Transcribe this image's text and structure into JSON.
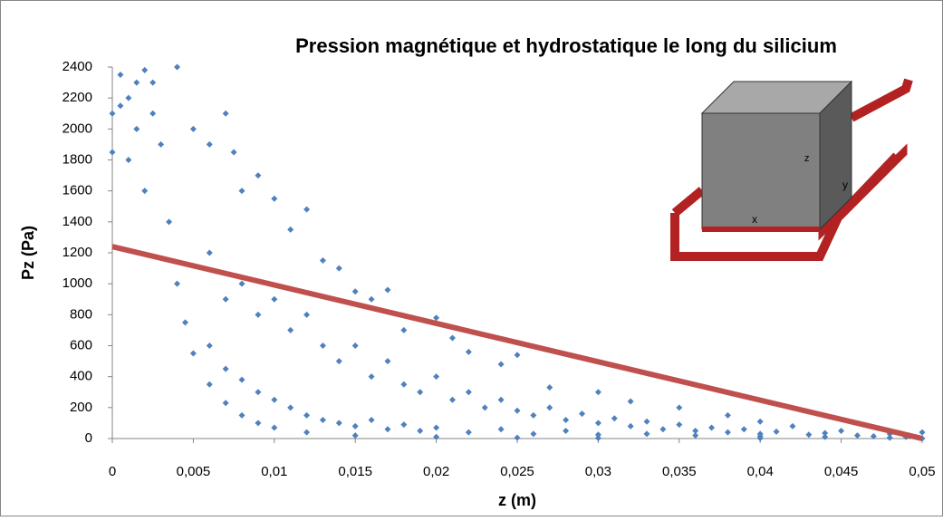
{
  "chart_data": {
    "type": "scatter",
    "title": "Pression magnétique et hydrostatique le long du silicium",
    "x_label": "z (m)",
    "y_label": "Pz (Pa)",
    "xlim": [
      0,
      0.05
    ],
    "ylim": [
      0,
      2400
    ],
    "xticks": [
      0,
      {
        "value": 0.005,
        "label": "0,005"
      },
      {
        "value": 0.01,
        "label": "0,01"
      },
      {
        "value": 0.015,
        "label": "0,015"
      },
      {
        "value": 0.02,
        "label": "0,02"
      },
      {
        "value": 0.025,
        "label": "0,025"
      },
      {
        "value": 0.03,
        "label": "0,03"
      },
      {
        "value": 0.035,
        "label": "0,035"
      },
      {
        "value": 0.04,
        "label": "0,04"
      },
      {
        "value": 0.045,
        "label": "0,045"
      },
      {
        "value": 0.05,
        "label": "0,05"
      }
    ],
    "yticks": [
      0,
      200,
      400,
      600,
      800,
      1000,
      1200,
      1400,
      1600,
      1800,
      2000,
      2200,
      2400
    ],
    "grid": false,
    "series": [
      {
        "color": "#4f81bd",
        "marker": "diamond",
        "x": [
          0.0025,
          0.003,
          0.0035,
          0.004,
          0.0045,
          0.005,
          0.006,
          0.007,
          0.008,
          0.009,
          0.01,
          0.012,
          0.015,
          0.02,
          0.025,
          0.03,
          0.04,
          0.05,
          0,
          0,
          0.0005,
          0.001,
          0.0015,
          0.001,
          0.002,
          0.002,
          0.0025,
          0.0015,
          0.0005,
          0.004,
          0.005,
          0.006,
          0.007,
          0.0075,
          0.008,
          0.009,
          0.01,
          0.011,
          0.012,
          0.013,
          0.014,
          0.015,
          0.016,
          0.017,
          0.018,
          0.02,
          0.021,
          0.022,
          0.024,
          0.025,
          0.027,
          0.03,
          0.032,
          0.035,
          0.038,
          0.04,
          0.042,
          0.045,
          0.048,
          0.05,
          0.006,
          0.007,
          0.008,
          0.009,
          0.01,
          0.011,
          0.012,
          0.013,
          0.014,
          0.015,
          0.016,
          0.017,
          0.018,
          0.019,
          0.02,
          0.021,
          0.022,
          0.023,
          0.024,
          0.025,
          0.026,
          0.027,
          0.028,
          0.029,
          0.03,
          0.031,
          0.032,
          0.033,
          0.034,
          0.035,
          0.036,
          0.037,
          0.038,
          0.039,
          0.04,
          0.041,
          0.043,
          0.044,
          0.046,
          0.047,
          0.049,
          0.006,
          0.007,
          0.008,
          0.009,
          0.01,
          0.011,
          0.012,
          0.013,
          0.014,
          0.015,
          0.016,
          0.017,
          0.018,
          0.019,
          0.02,
          0.022,
          0.024,
          0.026,
          0.028,
          0.03,
          0.033,
          0.036,
          0.04,
          0.044,
          0.048
        ],
        "values": [
          2300,
          1900,
          1400,
          1000,
          750,
          550,
          350,
          230,
          150,
          100,
          70,
          40,
          20,
          10,
          5,
          3,
          2,
          1,
          1850,
          2100,
          2350,
          2200,
          2000,
          1800,
          1600,
          2380,
          2100,
          2300,
          2150,
          2400,
          2000,
          1900,
          2100,
          1850,
          1600,
          1700,
          1550,
          1350,
          1480,
          1150,
          1100,
          950,
          900,
          960,
          700,
          780,
          650,
          560,
          480,
          540,
          330,
          300,
          240,
          200,
          150,
          110,
          80,
          50,
          30,
          40,
          1200,
          900,
          1000,
          800,
          900,
          700,
          800,
          600,
          500,
          600,
          400,
          500,
          350,
          300,
          400,
          250,
          300,
          200,
          250,
          180,
          150,
          200,
          120,
          160,
          100,
          130,
          80,
          110,
          60,
          90,
          50,
          70,
          40,
          60,
          30,
          45,
          25,
          35,
          20,
          15,
          10,
          600,
          450,
          380,
          300,
          250,
          200,
          150,
          120,
          100,
          80,
          120,
          60,
          90,
          50,
          70,
          40,
          60,
          30,
          50,
          25,
          30,
          20,
          15,
          10,
          5
        ]
      },
      {
        "color": "#c0504d",
        "mode": "line",
        "x": [
          0,
          0.05
        ],
        "values": [
          1240,
          0
        ]
      }
    ]
  },
  "inset": {
    "labels": [
      "z",
      "y",
      "x"
    ]
  }
}
